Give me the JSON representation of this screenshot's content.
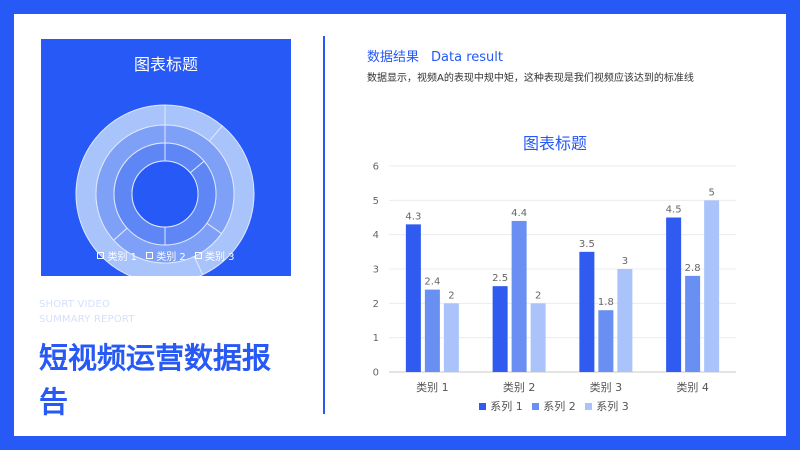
{
  "donut_panel": {
    "title": "图表标题",
    "legend": [
      "类别 1",
      "类别 2",
      "类别 3"
    ],
    "colors": {
      "panel": "#2659f5",
      "ring_outer": "#a9c3fb",
      "ring_middle": "#7ea0f7",
      "ring_inner": "#5e86f4"
    }
  },
  "left": {
    "english_subtitle_line1": "SHORT VIDEO",
    "english_subtitle_line2": "SUMMARY REPORT",
    "main_title": "短视频运营数据报告"
  },
  "section": {
    "heading_cn": "数据结果",
    "heading_en": "Data result",
    "description": "数据显示，视频A的表现中规中矩，这种表现是我们视频应该达到的标准线"
  },
  "colors": {
    "accent": "#2659f5",
    "series1": "#2f5bf0",
    "series2": "#6a8ff2",
    "series3": "#aac4fb"
  },
  "chart_data": {
    "type": "bar",
    "title": "图表标题",
    "categories": [
      "类别 1",
      "类别 2",
      "类别 3",
      "类别 4"
    ],
    "series": [
      {
        "name": "系列 1",
        "values": [
          4.3,
          2.5,
          3.5,
          4.5
        ]
      },
      {
        "name": "系列 2",
        "values": [
          2.4,
          4.4,
          1.8,
          2.8
        ]
      },
      {
        "name": "系列 3",
        "values": [
          2,
          2,
          3,
          5
        ]
      }
    ],
    "ylim": [
      0,
      6
    ],
    "yticks": [
      0,
      1,
      2,
      3,
      4,
      5,
      6
    ],
    "grid": true,
    "legend": "bottom",
    "data_labels": true
  }
}
